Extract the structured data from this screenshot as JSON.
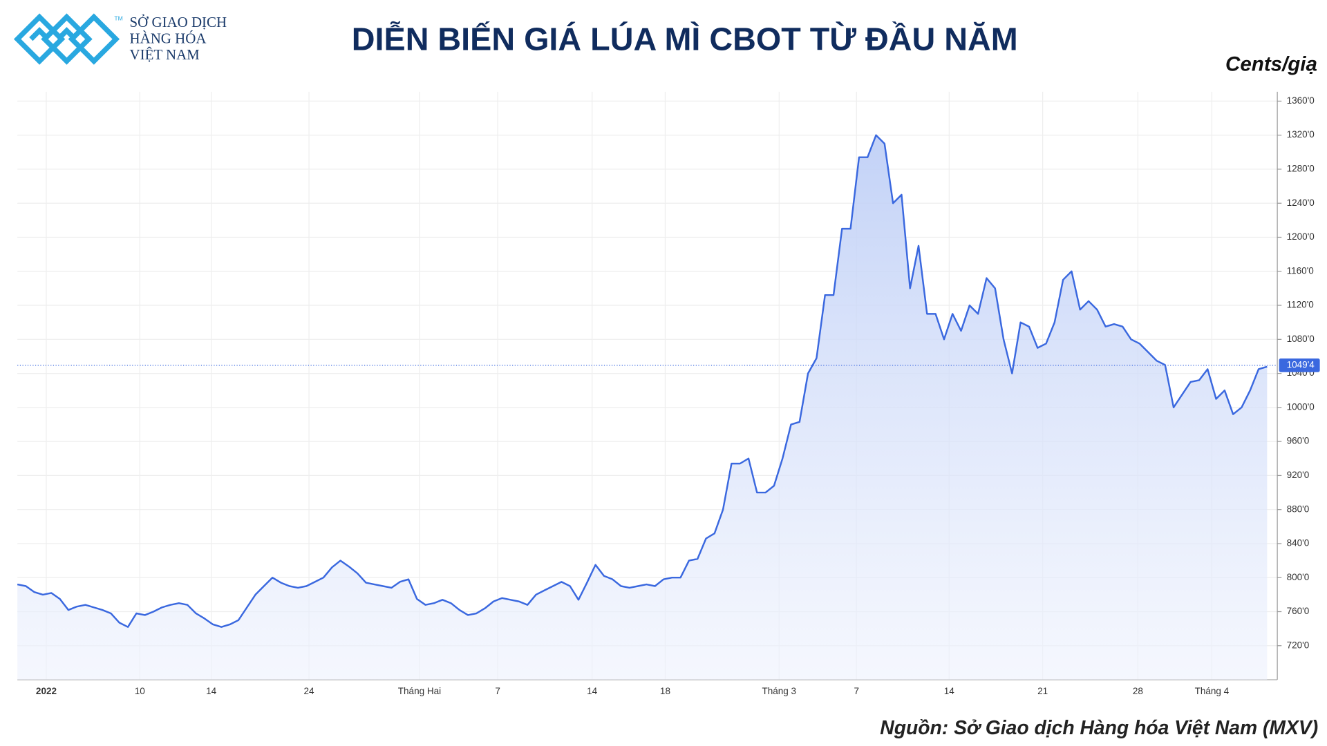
{
  "logo": {
    "lines": [
      "SỞ GIAO DỊCH",
      "HÀNG HÓA",
      "VIỆT NAM"
    ],
    "mark": "TM"
  },
  "chart_data": {
    "type": "line",
    "title": "DIỄN BIẾN GIÁ LÚA MÌ CBOT TỪ ĐẦU NĂM",
    "unit_label": "Cents/giạ",
    "source": "Nguồn: Sở Giao dịch Hàng hóa Việt Nam (MXV)",
    "color": "#3a68df",
    "grid": true,
    "values": [
      792,
      790,
      783,
      780,
      782,
      775,
      762,
      766,
      768,
      765,
      762,
      758,
      747,
      742,
      758,
      756,
      760,
      765,
      768,
      770,
      768,
      758,
      752,
      745,
      742,
      745,
      750,
      765,
      780,
      790,
      800,
      794,
      790,
      788,
      790,
      795,
      800,
      812,
      820,
      813,
      805,
      794,
      792,
      790,
      788,
      795,
      798,
      775,
      768,
      770,
      774,
      770,
      762,
      756,
      758,
      764,
      772,
      776,
      774,
      772,
      768,
      780,
      785,
      790,
      795,
      790,
      774,
      794,
      815,
      802,
      798,
      790,
      788,
      790,
      792,
      790,
      798,
      800,
      800,
      820,
      822,
      846,
      852,
      880,
      934,
      934,
      940,
      900,
      900,
      908,
      940,
      980,
      983,
      1040,
      1058,
      1132,
      1132,
      1210,
      1210,
      1294,
      1294,
      1320,
      1310,
      1240,
      1250,
      1140,
      1190,
      1110,
      1110,
      1080,
      1110,
      1090,
      1120,
      1110,
      1152,
      1140,
      1080,
      1040,
      1100,
      1095,
      1070,
      1075,
      1100,
      1150,
      1160,
      1115,
      1125,
      1115,
      1095,
      1098,
      1095,
      1080,
      1075,
      1065,
      1055,
      1050,
      1000,
      1015,
      1030,
      1032,
      1045,
      1010,
      1020,
      992,
      1000,
      1020,
      1045,
      1048
    ],
    "last_value": {
      "value": 1049.5,
      "label": "1049'4"
    },
    "xlim": [
      0,
      148.2
    ],
    "xticks": [
      {
        "value": 3.4,
        "label": "2022"
      },
      {
        "value": 14.4,
        "label": "10"
      },
      {
        "value": 22.8,
        "label": "14"
      },
      {
        "value": 34.3,
        "label": "24"
      },
      {
        "value": 47.3,
        "label": "Tháng Hai"
      },
      {
        "value": 56.5,
        "label": "7"
      },
      {
        "value": 67.6,
        "label": "14"
      },
      {
        "value": 76.2,
        "label": "18"
      },
      {
        "value": 89.6,
        "label": "Tháng 3"
      },
      {
        "value": 98.7,
        "label": "7"
      },
      {
        "value": 109.6,
        "label": "14"
      },
      {
        "value": 120.6,
        "label": "21"
      },
      {
        "value": 131.8,
        "label": "28"
      },
      {
        "value": 140.5,
        "label": "Tháng 4"
      }
    ],
    "ylim": [
      680,
      1371
    ],
    "yticks": [
      {
        "value": 720,
        "label": "720'0"
      },
      {
        "value": 760,
        "label": "760'0"
      },
      {
        "value": 800,
        "label": "800'0"
      },
      {
        "value": 840,
        "label": "840'0"
      },
      {
        "value": 880,
        "label": "880'0"
      },
      {
        "value": 920,
        "label": "920'0"
      },
      {
        "value": 960,
        "label": "960'0"
      },
      {
        "value": 1000,
        "label": "1000'0"
      },
      {
        "value": 1040,
        "label": "1040'0"
      },
      {
        "value": 1080,
        "label": "1080'0"
      },
      {
        "value": 1120,
        "label": "1120'0"
      },
      {
        "value": 1160,
        "label": "1160'0"
      },
      {
        "value": 1200,
        "label": "1200'0"
      },
      {
        "value": 1240,
        "label": "1240'0"
      },
      {
        "value": 1280,
        "label": "1280'0"
      },
      {
        "value": 1320,
        "label": "1320'0"
      },
      {
        "value": 1360,
        "label": "1360'0"
      }
    ]
  }
}
